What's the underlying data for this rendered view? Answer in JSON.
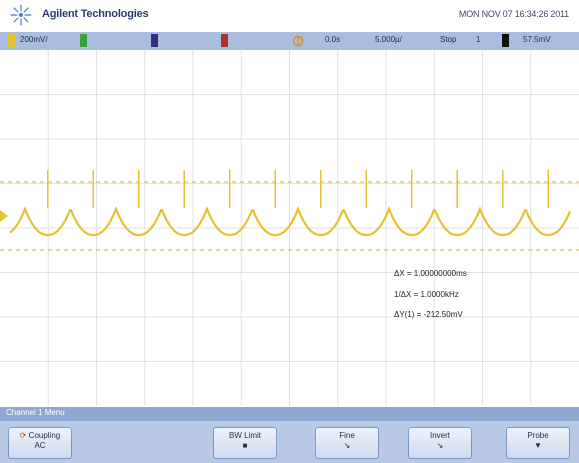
{
  "header": {
    "brand": "Agilent Technologies",
    "datetime": "MON NOV 07 16:34:26 2011"
  },
  "status_bar": {
    "ch1_scale": "200mV/",
    "time_offset": "0.0s",
    "time_scale": "5.000µ/",
    "run_state": "Stop",
    "trigger_source": "1",
    "trigger_level": "57.5mV"
  },
  "measurements": {
    "delta_x": "ΔX = 1.00000000ms",
    "inv_delta_x": "1/ΔX = 1.0000kHz",
    "delta_y": "ΔY(1) = -212.50mV"
  },
  "menu": {
    "title": "Channel 1 Menu",
    "softkeys": [
      {
        "label": "Coupling",
        "value": "AC"
      },
      {
        "label": "BW Limit",
        "value": "■"
      },
      {
        "label": "Fine",
        "value": "↘"
      },
      {
        "label": "Invert",
        "value": "↘"
      },
      {
        "label": "Probe",
        "value": "▼"
      }
    ]
  },
  "colors": {
    "ch1": "#e3c233",
    "ch2": "#3f9f3f",
    "ch3": "#303080",
    "ch4": "#b03030",
    "accent": "#a9bedf"
  }
}
